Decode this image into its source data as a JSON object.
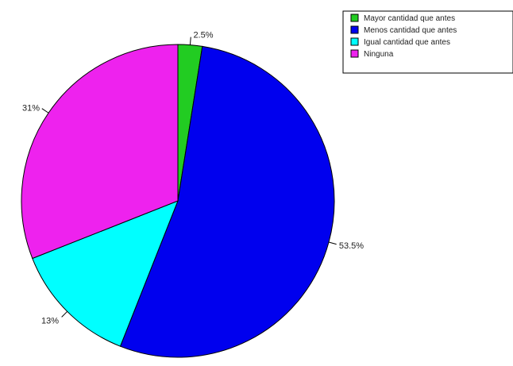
{
  "chart_data": {
    "type": "pie",
    "categories": [
      "Mayor cantidad  que antes",
      "Menos cantidad que antes",
      "Igual cantidad que antes",
      "Ninguna"
    ],
    "values": [
      2.5,
      53.5,
      13,
      31
    ],
    "labels": [
      "2.5%",
      "53.5%",
      "13%",
      "31%"
    ],
    "colors": [
      "#22cc22",
      "#0000ee",
      "#00ffff",
      "#ee22ee"
    ],
    "legend_placement": "top-right"
  }
}
